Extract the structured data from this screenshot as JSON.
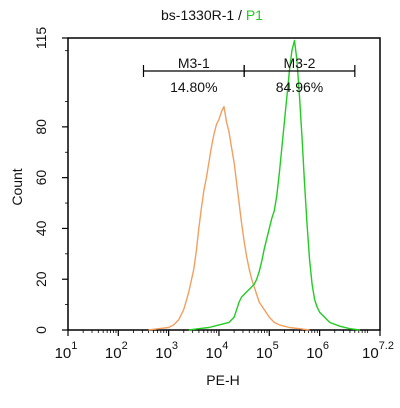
{
  "chart_data": {
    "type": "line",
    "title": {
      "left": "bs-1330R-1 / ",
      "right": "P1",
      "right_color": "#22cc22"
    },
    "xlabel": "PE-H",
    "ylabel": "Count",
    "xscale": "log",
    "xlim_exponent": [
      1,
      7.2
    ],
    "ylim": [
      0,
      115
    ],
    "x_ticks": [
      {
        "base": "10",
        "exp": "1"
      },
      {
        "base": "10",
        "exp": "2"
      },
      {
        "base": "10",
        "exp": "3"
      },
      {
        "base": "10",
        "exp": "4"
      },
      {
        "base": "10",
        "exp": "5"
      },
      {
        "base": "10",
        "exp": "6"
      },
      {
        "base": "10",
        "exp": "7.2"
      }
    ],
    "y_ticks": [
      "0",
      "20",
      "40",
      "60",
      "80",
      "115"
    ],
    "grid": false,
    "series": [
      {
        "color": "#f0a060",
        "points": [
          [
            2.6,
            0
          ],
          [
            2.8,
            0.5
          ],
          [
            3.0,
            1
          ],
          [
            3.1,
            2
          ],
          [
            3.2,
            4
          ],
          [
            3.3,
            8
          ],
          [
            3.4,
            15
          ],
          [
            3.5,
            24
          ],
          [
            3.55,
            31
          ],
          [
            3.6,
            40
          ],
          [
            3.65,
            48
          ],
          [
            3.7,
            55
          ],
          [
            3.75,
            60
          ],
          [
            3.8,
            66
          ],
          [
            3.85,
            72
          ],
          [
            3.9,
            77
          ],
          [
            3.95,
            81
          ],
          [
            4.0,
            83
          ],
          [
            4.05,
            86
          ],
          [
            4.1,
            88
          ],
          [
            4.15,
            82
          ],
          [
            4.2,
            78
          ],
          [
            4.25,
            72
          ],
          [
            4.3,
            66
          ],
          [
            4.35,
            58
          ],
          [
            4.4,
            50
          ],
          [
            4.45,
            42
          ],
          [
            4.5,
            35
          ],
          [
            4.55,
            29
          ],
          [
            4.6,
            24
          ],
          [
            4.65,
            20
          ],
          [
            4.7,
            17
          ],
          [
            4.75,
            14
          ],
          [
            4.8,
            11
          ],
          [
            4.9,
            8
          ],
          [
            5.0,
            5
          ],
          [
            5.1,
            3
          ],
          [
            5.2,
            2
          ],
          [
            5.4,
            1
          ],
          [
            5.6,
            0.5
          ],
          [
            5.8,
            0
          ]
        ]
      },
      {
        "color": "#22cc22",
        "points": [
          [
            3.4,
            0
          ],
          [
            3.6,
            0.5
          ],
          [
            3.8,
            1
          ],
          [
            4.0,
            2
          ],
          [
            4.2,
            3
          ],
          [
            4.3,
            5
          ],
          [
            4.35,
            8
          ],
          [
            4.4,
            11
          ],
          [
            4.45,
            13
          ],
          [
            4.5,
            14
          ],
          [
            4.55,
            15
          ],
          [
            4.6,
            16
          ],
          [
            4.65,
            17
          ],
          [
            4.7,
            18
          ],
          [
            4.75,
            20
          ],
          [
            4.8,
            23
          ],
          [
            4.85,
            27
          ],
          [
            4.9,
            32
          ],
          [
            4.95,
            36
          ],
          [
            5.0,
            40
          ],
          [
            5.05,
            44
          ],
          [
            5.1,
            47
          ],
          [
            5.15,
            53
          ],
          [
            5.2,
            62
          ],
          [
            5.25,
            72
          ],
          [
            5.3,
            82
          ],
          [
            5.35,
            92
          ],
          [
            5.4,
            102
          ],
          [
            5.45,
            110
          ],
          [
            5.5,
            114
          ],
          [
            5.55,
            106
          ],
          [
            5.6,
            92
          ],
          [
            5.65,
            76
          ],
          [
            5.7,
            58
          ],
          [
            5.75,
            42
          ],
          [
            5.8,
            28
          ],
          [
            5.85,
            18
          ],
          [
            5.9,
            12
          ],
          [
            5.95,
            9
          ],
          [
            6.0,
            7
          ],
          [
            6.1,
            5
          ],
          [
            6.2,
            3
          ],
          [
            6.4,
            1.5
          ],
          [
            6.6,
            0.5
          ],
          [
            6.8,
            0
          ]
        ]
      }
    ],
    "gates": [
      {
        "label": "M3-1",
        "percent": "14.80%",
        "x_start_exponent": 2.5,
        "x_end_exponent": 4.5,
        "y_level": 102
      },
      {
        "label": "M3-2",
        "percent": "84.96%",
        "x_start_exponent": 4.5,
        "x_end_exponent": 6.7,
        "y_level": 102
      }
    ]
  }
}
